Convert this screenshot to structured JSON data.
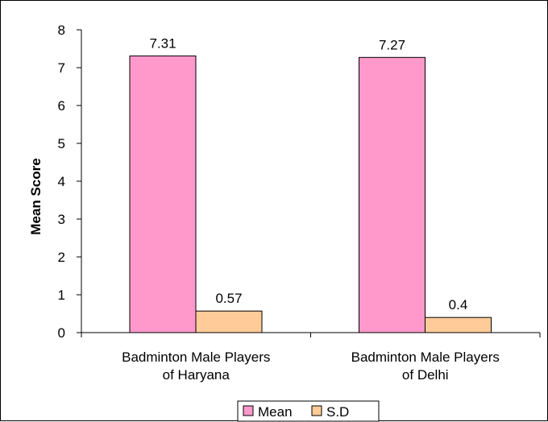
{
  "chart_data": {
    "type": "bar",
    "categories": [
      [
        "Badminton Male Players",
        "of Haryana"
      ],
      [
        "Badminton Male Players",
        "of Delhi"
      ]
    ],
    "series": [
      {
        "name": "Mean",
        "values": [
          7.31,
          7.27
        ],
        "labels": [
          "7.31",
          "7.27"
        ],
        "color": "#FF99CC"
      },
      {
        "name": "S.D",
        "values": [
          0.57,
          0.4
        ],
        "labels": [
          "0.57",
          "0.4"
        ],
        "color": "#FFCC99"
      }
    ],
    "title": "",
    "xlabel": "",
    "ylabel": "Mean Score",
    "ylim": [
      0,
      8
    ],
    "yticks": [
      "0",
      "1",
      "2",
      "3",
      "4",
      "5",
      "6",
      "7",
      "8"
    ],
    "grid": false,
    "legend_position": "bottom"
  }
}
